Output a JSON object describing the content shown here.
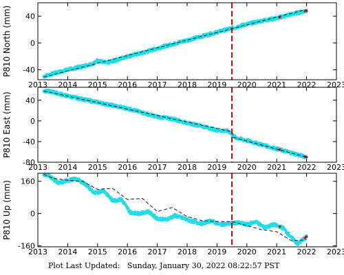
{
  "colors": {
    "data": "#22dde8",
    "model": "#000000",
    "event_line": "#cc0000",
    "outlier": "#cc1111",
    "frame": "#000000"
  },
  "chart_data": [
    {
      "type": "scatter",
      "ylabel": "P810 North (mm)",
      "xlim": [
        2013,
        2023
      ],
      "ylim": [
        -55,
        60
      ],
      "x_ticks": [
        "2013",
        "2014",
        "2015",
        "2016",
        "2017",
        "2018",
        "2019",
        "2020",
        "2021",
        "2022",
        "2023"
      ],
      "y_ticks": [
        -40,
        0,
        40
      ],
      "event_x": 2019.5,
      "series": [
        {
          "kind": "observed",
          "x": [
            2013.2,
            2013.5,
            2014.0,
            2014.5,
            2014.9,
            2015.0,
            2015.3,
            2015.6,
            2016.0,
            2016.5,
            2017.0,
            2017.5,
            2018.0,
            2018.5,
            2019.0,
            2019.5,
            2020.0,
            2020.5,
            2021.0,
            2021.5,
            2022.0
          ],
          "y": [
            -50,
            -46,
            -40,
            -35,
            -30,
            -26,
            -30,
            -26,
            -20,
            -15,
            -8,
            -2,
            4,
            10,
            16,
            22,
            28,
            33,
            37,
            43,
            48
          ]
        },
        {
          "kind": "model",
          "x": [
            2013.2,
            2022.0
          ],
          "y": [
            -51,
            50
          ]
        }
      ]
    },
    {
      "type": "scatter",
      "ylabel": "P810 East (mm)",
      "xlim": [
        2013,
        2023
      ],
      "ylim": [
        -80,
        65
      ],
      "x_ticks": [
        "2013",
        "2014",
        "2015",
        "2016",
        "2017",
        "2018",
        "2019",
        "2020",
        "2021",
        "2022",
        "2023"
      ],
      "y_ticks": [
        -80,
        -40,
        0,
        40
      ],
      "event_x": 2019.5,
      "series": [
        {
          "kind": "observed",
          "x": [
            2013.2,
            2013.5,
            2014.0,
            2014.5,
            2015.0,
            2015.5,
            2016.0,
            2016.5,
            2017.0,
            2017.5,
            2018.0,
            2018.5,
            2019.0,
            2019.4,
            2019.6,
            2020.0,
            2020.5,
            2021.0,
            2021.5,
            2022.0
          ],
          "y": [
            58,
            56,
            48,
            42,
            36,
            30,
            24,
            16,
            8,
            4,
            -4,
            -10,
            -18,
            -20,
            -32,
            -38,
            -46,
            -54,
            -62,
            -70
          ]
        },
        {
          "kind": "model",
          "x": [
            2013.2,
            2019.5,
            2019.55,
            2022.0
          ],
          "y": [
            58,
            -21,
            -32,
            -70
          ]
        }
      ]
    },
    {
      "type": "scatter",
      "ylabel": "P810 Up (mm)",
      "xlim": [
        2013,
        2023
      ],
      "ylim": [
        -165,
        200
      ],
      "x_ticks": [
        "2013",
        "2014",
        "2015",
        "2016",
        "2017",
        "2018",
        "2019",
        "2020",
        "2021",
        "2022",
        "2023"
      ],
      "y_ticks": [
        -160,
        0,
        160
      ],
      "event_x": 2019.5,
      "series": [
        {
          "kind": "observed",
          "x": [
            2013.2,
            2013.4,
            2013.7,
            2014.0,
            2014.3,
            2014.6,
            2014.9,
            2015.2,
            2015.5,
            2015.8,
            2016.1,
            2016.4,
            2016.7,
            2017.0,
            2017.3,
            2017.6,
            2017.9,
            2018.2,
            2018.5,
            2018.8,
            2019.1,
            2019.4,
            2019.7,
            2020.0,
            2020.3,
            2020.6,
            2020.9,
            2021.2,
            2021.5,
            2021.7,
            2022.0
          ],
          "y": [
            195,
            185,
            150,
            165,
            172,
            145,
            100,
            115,
            65,
            70,
            5,
            0,
            10,
            -25,
            -30,
            -10,
            -25,
            -40,
            -50,
            -35,
            -55,
            -50,
            -45,
            -55,
            -40,
            -70,
            -55,
            -70,
            -120,
            -150,
            -115
          ]
        },
        {
          "kind": "model",
          "x": [
            2013.2,
            2013.5,
            2014.0,
            2014.5,
            2015.0,
            2015.5,
            2016.0,
            2016.5,
            2017.0,
            2017.5,
            2018.0,
            2018.5,
            2019.0,
            2019.5,
            2020.0,
            2020.5,
            2021.0,
            2021.5,
            2022.0
          ],
          "y": [
            195,
            175,
            165,
            160,
            120,
            125,
            70,
            75,
            10,
            30,
            -15,
            -35,
            -40,
            -40,
            -60,
            -80,
            -90,
            -135,
            -130
          ]
        }
      ]
    }
  ],
  "footer": {
    "label": "Plot Last Updated:",
    "value": "Sunday, January 30, 2022 08:22:57 PST"
  }
}
